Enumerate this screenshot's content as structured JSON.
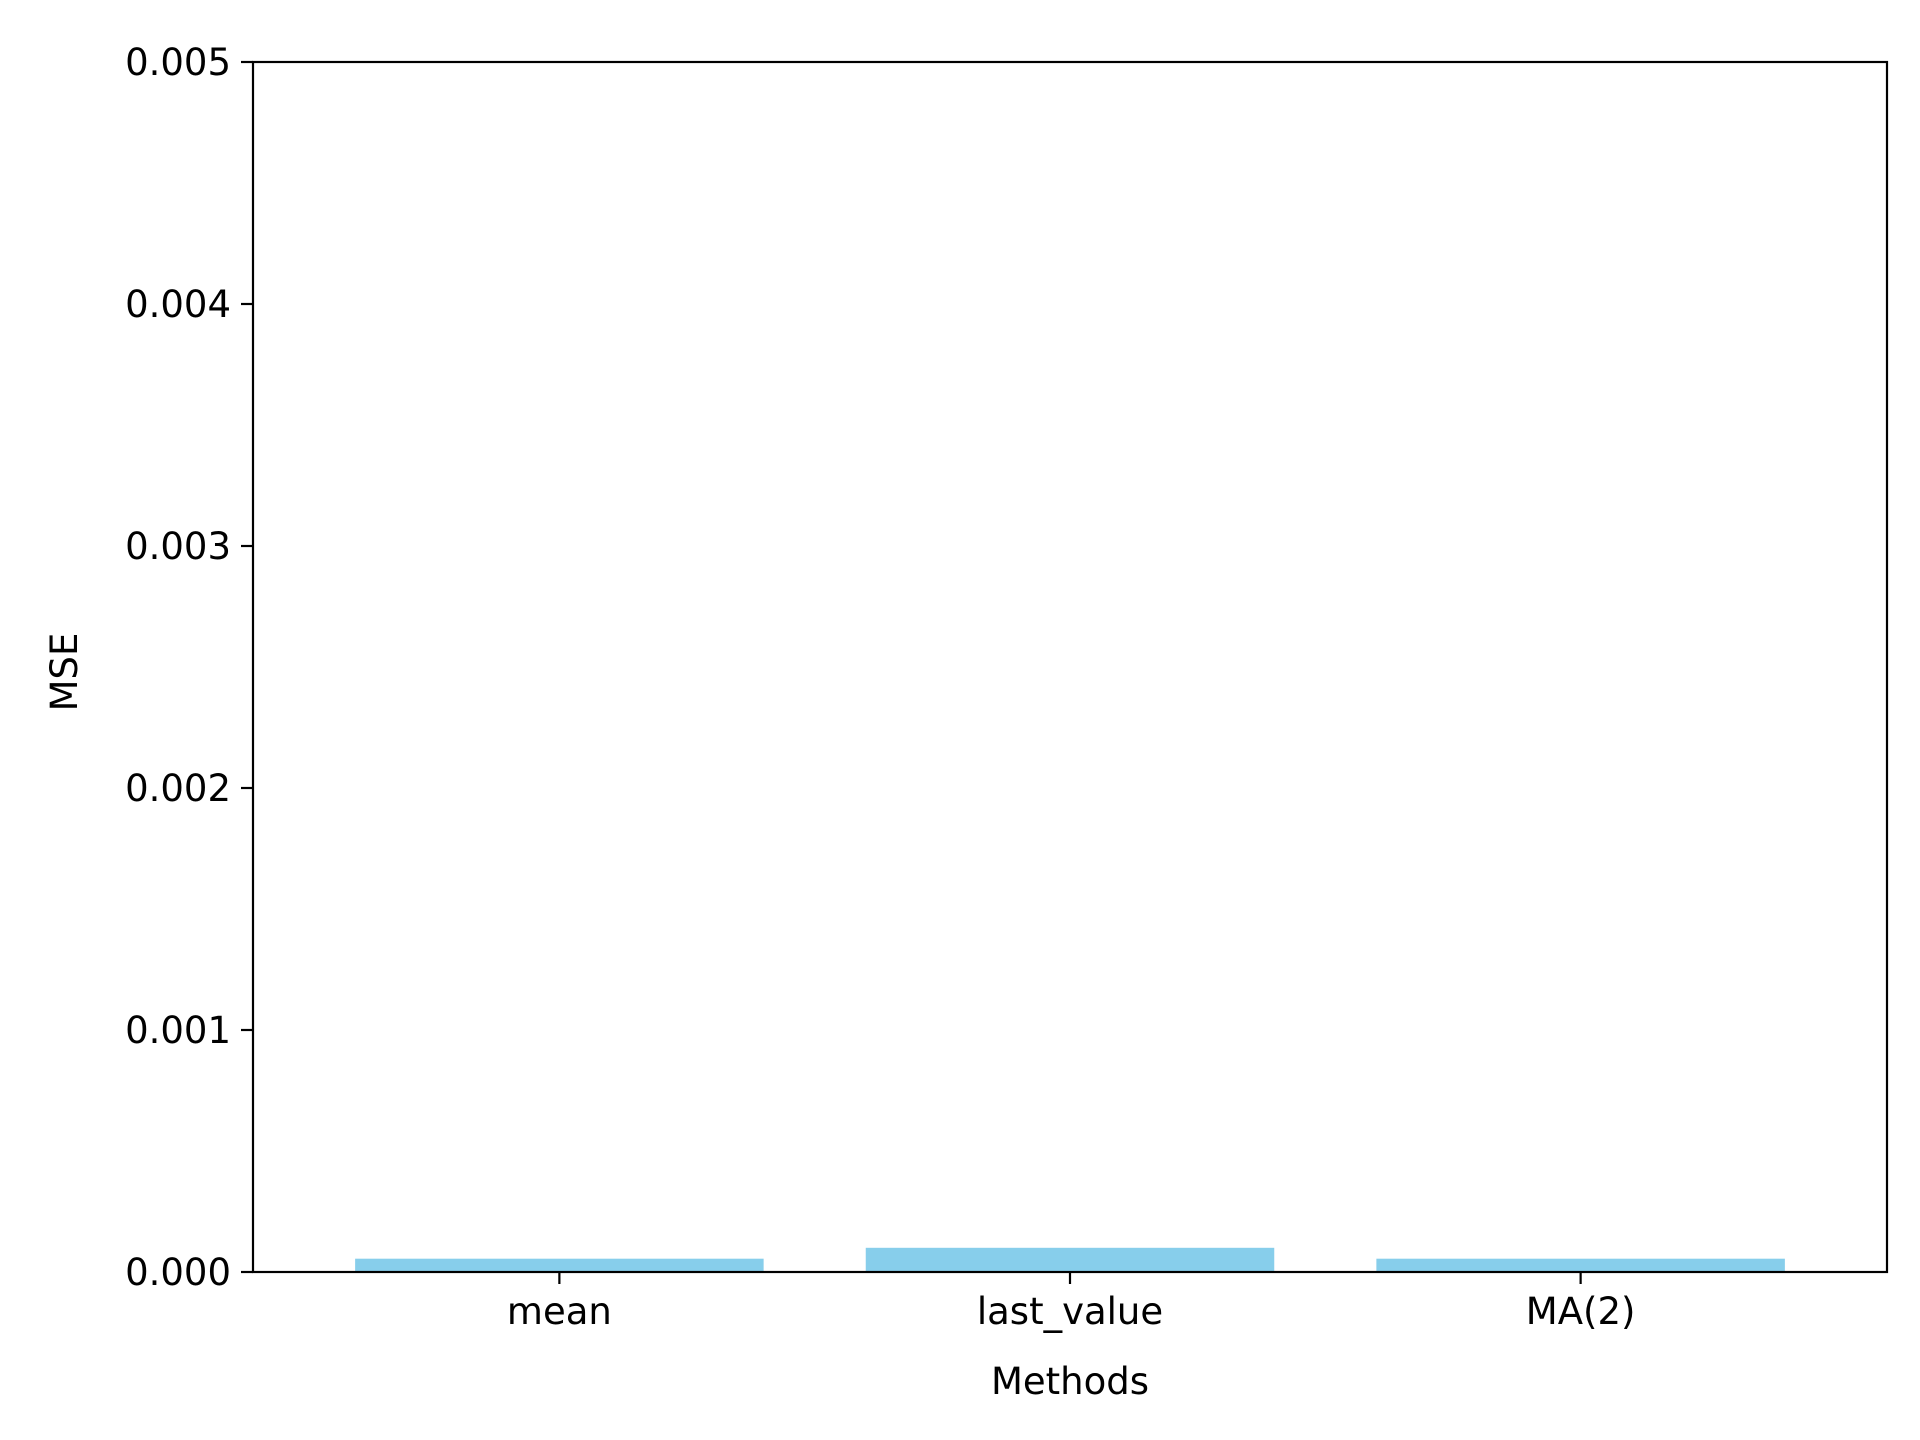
{
  "chart_data": {
    "type": "bar",
    "title": "",
    "xlabel": "Methods",
    "ylabel": "MSE",
    "categories": [
      "mean",
      "last_value",
      "MA(2)"
    ],
    "values": [
      5.5e-05,
      0.0001,
      5.5e-05
    ],
    "ylim": [
      0,
      0.005
    ],
    "yticks": [
      0,
      0.001,
      0.002,
      0.003,
      0.004,
      0.005
    ],
    "ytick_labels": [
      "0.000",
      "0.001",
      "0.002",
      "0.003",
      "0.004",
      "0.005"
    ],
    "bar_color": "#87CEEB",
    "grid": false,
    "legend": "none"
  }
}
